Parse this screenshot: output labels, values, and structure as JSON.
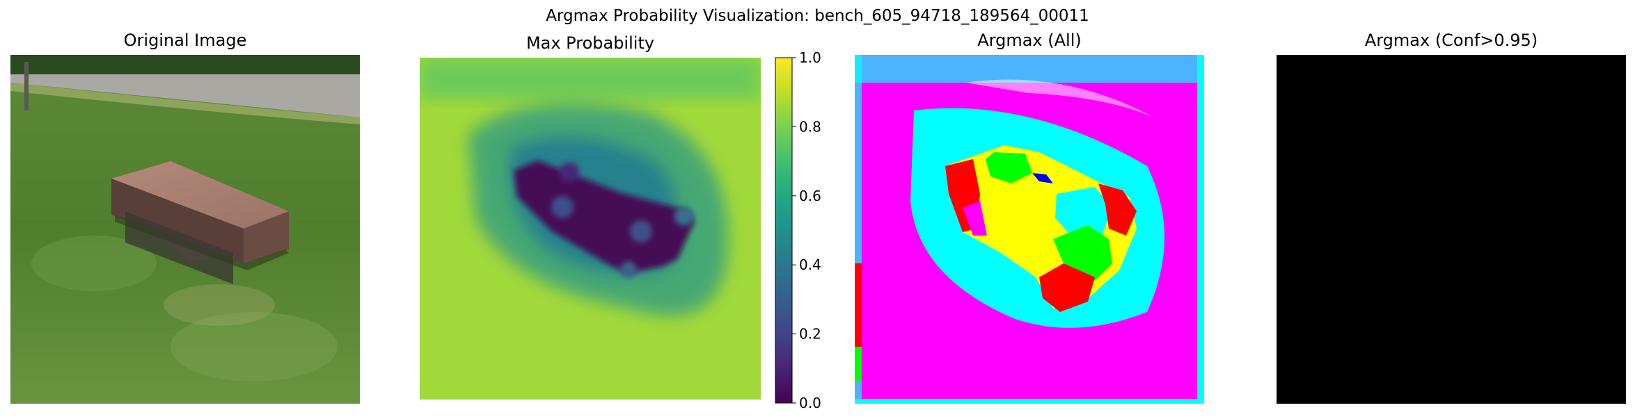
{
  "figure": {
    "suptitle": "Argmax Probability Visualization: bench_605_94718_189564_00011"
  },
  "panels": [
    {
      "title": "Original Image"
    },
    {
      "title": "Max Probability"
    },
    {
      "title": "Argmax (All)"
    },
    {
      "title": "Argmax (Conf>0.95)"
    }
  ],
  "colorbar": {
    "colormap": "viridis",
    "range": [
      0.0,
      1.0
    ],
    "ticks": [
      "0.0",
      "0.2",
      "0.4",
      "0.6",
      "0.8",
      "1.0"
    ]
  },
  "colors": {
    "magenta": "#ff00ff",
    "cyan": "#00ffff",
    "red": "#ff0000",
    "green": "#00ff00",
    "yellow": "#ffff00",
    "blue": "#0000ff",
    "black": "#000000"
  }
}
